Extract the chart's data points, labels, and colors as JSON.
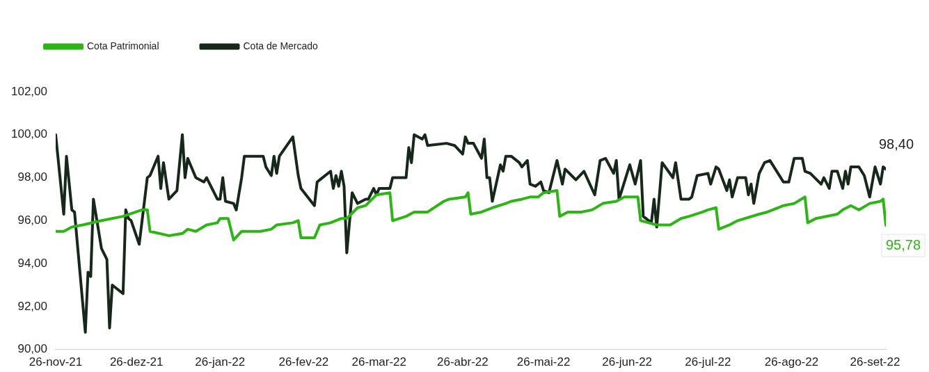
{
  "chart_data": {
    "type": "line",
    "xlim": [
      "2021-11-26",
      "2022-09-30"
    ],
    "xticks": [
      {
        "value": "2021-11-26",
        "label": "26-nov-21"
      },
      {
        "value": "2021-12-26",
        "label": "26-dez-21"
      },
      {
        "value": "2022-01-26",
        "label": "26-jan-22"
      },
      {
        "value": "2022-02-26",
        "label": "26-fev-22"
      },
      {
        "value": "2022-03-26",
        "label": "26-mar-22"
      },
      {
        "value": "2022-04-26",
        "label": "26-abr-22"
      },
      {
        "value": "2022-05-26",
        "label": "26-mai-22"
      },
      {
        "value": "2022-06-26",
        "label": "26-jun-22"
      },
      {
        "value": "2022-07-26",
        "label": "26-jul-22"
      },
      {
        "value": "2022-08-26",
        "label": "26-ago-22"
      },
      {
        "value": "2022-09-26",
        "label": "26-set-22"
      }
    ],
    "ylim": [
      90,
      102
    ],
    "yticks": [
      {
        "value": 90,
        "label": "90,00"
      },
      {
        "value": 92,
        "label": "92,00"
      },
      {
        "value": 94,
        "label": "94,00"
      },
      {
        "value": 96,
        "label": "96,00"
      },
      {
        "value": 98,
        "label": "98,00"
      },
      {
        "value": 100,
        "label": "100,00"
      },
      {
        "value": 102,
        "label": "102,00"
      }
    ],
    "grid": false,
    "legend": "top left",
    "marker": "none",
    "line_style": "solid",
    "annotations": [
      {
        "text": "98,40",
        "x": "2022-09-30",
        "y": 98.4
      },
      {
        "text": "95,78",
        "x": "2022-09-30",
        "y": 95.78
      }
    ],
    "series": [
      {
        "name": "Cota Patrimonial",
        "color": "#2db516",
        "x": [
          "2021-11-26",
          "2021-11-29",
          "2021-12-02",
          "2021-12-06",
          "2021-12-13",
          "2021-12-21",
          "2021-12-28",
          "2021-12-30",
          "2021-12-31",
          "2022-01-07",
          "2022-01-12",
          "2022-01-14",
          "2022-01-17",
          "2022-01-21",
          "2022-01-25",
          "2022-01-26",
          "2022-01-29",
          "2022-01-31",
          "2022-02-03",
          "2022-02-07",
          "2022-02-10",
          "2022-02-14",
          "2022-02-16",
          "2022-02-22",
          "2022-02-24",
          "2022-02-25",
          "2022-03-02",
          "2022-03-04",
          "2022-03-08",
          "2022-03-12",
          "2022-03-14",
          "2022-03-18",
          "2022-03-21",
          "2022-03-25",
          "2022-03-30",
          "2022-03-31",
          "2022-04-05",
          "2022-04-08",
          "2022-04-13",
          "2022-04-19",
          "2022-04-21",
          "2022-04-27",
          "2022-04-28",
          "2022-04-29",
          "2022-05-03",
          "2022-05-07",
          "2022-05-12",
          "2022-05-14",
          "2022-05-18",
          "2022-05-21",
          "2022-05-24",
          "2022-05-26",
          "2022-05-31",
          "2022-06-01",
          "2022-06-04",
          "2022-06-07",
          "2022-06-09",
          "2022-06-13",
          "2022-06-17",
          "2022-06-22",
          "2022-06-25",
          "2022-06-30",
          "2022-07-01",
          "2022-07-04",
          "2022-07-07",
          "2022-07-12",
          "2022-07-16",
          "2022-07-19",
          "2022-07-24",
          "2022-07-26",
          "2022-07-29",
          "2022-07-30",
          "2022-08-03",
          "2022-08-06",
          "2022-08-14",
          "2022-08-17",
          "2022-08-21",
          "2022-08-23",
          "2022-08-27",
          "2022-08-31",
          "2022-09-01",
          "2022-09-04",
          "2022-09-12",
          "2022-09-14",
          "2022-09-17",
          "2022-09-20",
          "2022-09-24",
          "2022-09-28",
          "2022-09-29",
          "2022-09-30"
        ],
        "values": [
          95.5,
          95.5,
          95.7,
          95.8,
          96.0,
          96.2,
          96.5,
          96.5,
          95.5,
          95.3,
          95.4,
          95.6,
          95.5,
          95.8,
          95.9,
          96.1,
          96.1,
          95.1,
          95.5,
          95.5,
          95.5,
          95.6,
          95.8,
          95.9,
          96.0,
          95.2,
          95.2,
          95.8,
          95.9,
          96.1,
          96.1,
          96.6,
          96.7,
          97.2,
          97.3,
          96.0,
          96.2,
          96.4,
          96.4,
          96.9,
          97.0,
          97.1,
          97.3,
          96.3,
          96.4,
          96.6,
          96.8,
          96.9,
          97.0,
          97.1,
          97.1,
          97.3,
          97.4,
          96.2,
          96.4,
          96.4,
          96.4,
          96.5,
          96.8,
          96.9,
          97.1,
          97.1,
          96.0,
          95.9,
          95.8,
          95.8,
          96.1,
          96.2,
          96.4,
          96.5,
          96.6,
          95.6,
          95.8,
          96.0,
          96.3,
          96.4,
          96.6,
          96.7,
          96.8,
          97.1,
          95.9,
          96.1,
          96.3,
          96.5,
          96.7,
          96.5,
          96.8,
          96.9,
          97.0,
          95.78
        ]
      },
      {
        "name": "Cota de Mercado",
        "color": "#16281a",
        "x": [
          "2021-11-26",
          "2021-11-29",
          "2021-11-30",
          "2021-12-02",
          "2021-12-03",
          "2021-12-07",
          "2021-12-08",
          "2021-12-09",
          "2021-12-10",
          "2021-12-13",
          "2021-12-15",
          "2021-12-16",
          "2021-12-17",
          "2021-12-21",
          "2021-12-22",
          "2021-12-23",
          "2021-12-24",
          "2021-12-27",
          "2021-12-30",
          "2021-12-31",
          "2022-01-03",
          "2022-01-04",
          "2022-01-05",
          "2022-01-07",
          "2022-01-10",
          "2022-01-12",
          "2022-01-13",
          "2022-01-14",
          "2022-01-17",
          "2022-01-20",
          "2022-01-21",
          "2022-01-25",
          "2022-01-26",
          "2022-01-27",
          "2022-01-28",
          "2022-01-31",
          "2022-02-01",
          "2022-02-03",
          "2022-02-04",
          "2022-02-07",
          "2022-02-11",
          "2022-02-12",
          "2022-02-14",
          "2022-02-15",
          "2022-02-16",
          "2022-02-17",
          "2022-02-22",
          "2022-02-24",
          "2022-02-25",
          "2022-03-02",
          "2022-03-03",
          "2022-03-04",
          "2022-03-08",
          "2022-03-09",
          "2022-03-10",
          "2022-03-11",
          "2022-03-12",
          "2022-03-13",
          "2022-03-14",
          "2022-03-16",
          "2022-03-18",
          "2022-03-21",
          "2022-03-22",
          "2022-03-24",
          "2022-03-25",
          "2022-03-26",
          "2022-03-30",
          "2022-03-31",
          "2022-04-05",
          "2022-04-06",
          "2022-04-07",
          "2022-04-08",
          "2022-04-11",
          "2022-04-12",
          "2022-04-13",
          "2022-04-20",
          "2022-04-23",
          "2022-04-26",
          "2022-04-27",
          "2022-04-28",
          "2022-04-30",
          "2022-05-03",
          "2022-05-04",
          "2022-05-05",
          "2022-05-06",
          "2022-05-07",
          "2022-05-10",
          "2022-05-11",
          "2022-05-12",
          "2022-05-14",
          "2022-05-17",
          "2022-05-18",
          "2022-05-20",
          "2022-05-21",
          "2022-05-23",
          "2022-05-25",
          "2022-05-26",
          "2022-05-28",
          "2022-05-31",
          "2022-06-02",
          "2022-06-03",
          "2022-06-07",
          "2022-06-10",
          "2022-06-14",
          "2022-06-16",
          "2022-06-18",
          "2022-06-21",
          "2022-06-22",
          "2022-06-23",
          "2022-06-24",
          "2022-06-27",
          "2022-06-29",
          "2022-07-01",
          "2022-07-02",
          "2022-07-05",
          "2022-07-06",
          "2022-07-07",
          "2022-07-09",
          "2022-07-13",
          "2022-07-14",
          "2022-07-16",
          "2022-07-19",
          "2022-07-20",
          "2022-07-22",
          "2022-07-26",
          "2022-07-27",
          "2022-07-29",
          "2022-07-30",
          "2022-08-02",
          "2022-08-03",
          "2022-08-04",
          "2022-08-06",
          "2022-08-09",
          "2022-08-10",
          "2022-08-11",
          "2022-08-12",
          "2022-08-14",
          "2022-08-16",
          "2022-08-18",
          "2022-08-23",
          "2022-08-25",
          "2022-08-27",
          "2022-08-30",
          "2022-08-31",
          "2022-09-02",
          "2022-09-06",
          "2022-09-07",
          "2022-09-09",
          "2022-09-10",
          "2022-09-12",
          "2022-09-14",
          "2022-09-15",
          "2022-09-16",
          "2022-09-17",
          "2022-09-20",
          "2022-09-22",
          "2022-09-24",
          "2022-09-26",
          "2022-09-28",
          "2022-09-29",
          "2022-09-30"
        ],
        "values": [
          100.0,
          96.3,
          99.0,
          96.5,
          96.4,
          90.8,
          93.6,
          93.4,
          97.0,
          94.7,
          94.2,
          91.0,
          93.0,
          92.6,
          96.5,
          96.1,
          96.0,
          94.9,
          98.0,
          98.1,
          99.0,
          97.5,
          98.7,
          97.0,
          97.4,
          100.0,
          98.0,
          98.9,
          98.0,
          97.8,
          98.0,
          97.0,
          97.0,
          98.0,
          96.9,
          96.8,
          96.5,
          98.0,
          99.0,
          99.0,
          99.0,
          98.5,
          98.1,
          99.0,
          98.2,
          99.0,
          99.9,
          98.1,
          97.5,
          96.7,
          97.8,
          97.9,
          98.3,
          97.5,
          98.1,
          97.6,
          98.3,
          97.6,
          94.5,
          97.3,
          96.8,
          97.0,
          97.0,
          97.5,
          97.2,
          97.5,
          97.5,
          98.0,
          98.0,
          99.4,
          98.7,
          100.0,
          99.8,
          100.0,
          99.5,
          99.6,
          99.5,
          99.1,
          99.9,
          99.6,
          99.6,
          98.9,
          99.8,
          98.0,
          98.0,
          96.9,
          98.6,
          98.3,
          99.0,
          99.0,
          98.7,
          98.5,
          98.8,
          97.7,
          97.6,
          97.8,
          97.4,
          97.3,
          98.8,
          97.7,
          98.4,
          97.9,
          98.3,
          97.2,
          98.8,
          98.9,
          98.2,
          98.8,
          97.0,
          97.4,
          98.6,
          97.7,
          98.8,
          96.2,
          95.9,
          97.0,
          95.7,
          98.7,
          98.0,
          98.7,
          97.0,
          97.0,
          97.1,
          98.1,
          98.2,
          97.7,
          98.5,
          98.4,
          97.4,
          97.9,
          97.1,
          98.0,
          98.0,
          97.2,
          97.7,
          96.8,
          98.2,
          98.7,
          98.8,
          97.8,
          97.8,
          98.9,
          98.9,
          98.3,
          98.2,
          97.7,
          98.0,
          97.5,
          98.3,
          98.3,
          97.5,
          98.3,
          97.7,
          98.5,
          98.5,
          98.1,
          97.1,
          98.5,
          97.7,
          98.5,
          98.4
        ]
      }
    ]
  }
}
